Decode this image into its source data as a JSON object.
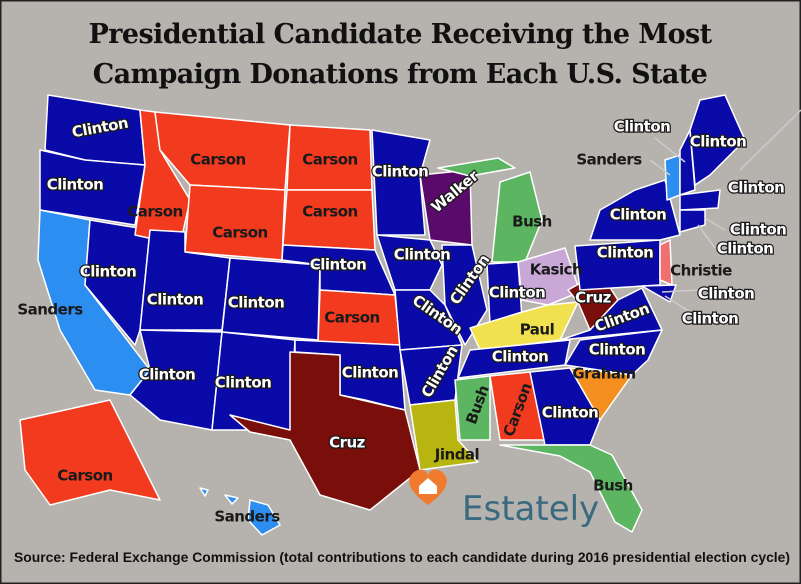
{
  "title_lines": [
    "Presidential Candidate Receiving the Most",
    "Campaign Donations from Each U.S. State"
  ],
  "labels": [
    "Clinton",
    "Clinton",
    "Carson",
    "Carson",
    "Carson",
    "Carson",
    "Carson",
    "Clinton",
    "Walker",
    "Bush",
    "Clinton",
    "Sanders",
    "Clinton",
    "Clinton",
    "Clinton",
    "Clinton",
    "Clinton",
    "Clinton",
    "Carson",
    "Clinton",
    "Kasich",
    "Cruz",
    "Paul",
    "Clinton",
    "Clinton",
    "Clinton",
    "Clinton",
    "Clinton",
    "Clinton",
    "Graham",
    "Clinton",
    "Bush",
    "Carson",
    "Clinton",
    "Cruz",
    "Jindal",
    "Bush",
    "Carson",
    "Sanders",
    "Clinton",
    "Clinton",
    "Clinton",
    "Clinton",
    "Sanders",
    "Clinton",
    "Clinton",
    "Clinton",
    "Christie",
    "Clinton",
    "Clinton"
  ],
  "source": "Source:  Federal Exchange Commission (total contributions to each candidate during 2016 presidential election cycle)",
  "logo": "Estately"
}
